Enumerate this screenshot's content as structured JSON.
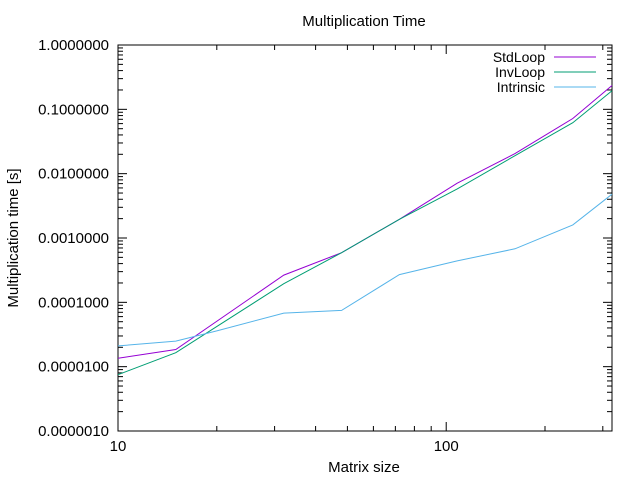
{
  "chart_data": {
    "type": "line",
    "title": "Multiplication Time",
    "xlabel": "Matrix size",
    "ylabel": "Multiplication time [s]",
    "x_scale": "log",
    "y_scale": "log",
    "xlim": [
      10,
      320
    ],
    "ylim": [
      1e-06,
      1
    ],
    "x_ticks": [
      {
        "value": 10,
        "label": "10"
      },
      {
        "value": 100,
        "label": "100"
      }
    ],
    "y_ticks": [
      {
        "value": 1e-06,
        "label": "0.0000010"
      },
      {
        "value": 1e-05,
        "label": "0.0000100"
      },
      {
        "value": 0.0001,
        "label": "0.0001000"
      },
      {
        "value": 0.001,
        "label": "0.0010000"
      },
      {
        "value": 0.01,
        "label": "0.0100000"
      },
      {
        "value": 0.1,
        "label": "0.1000000"
      },
      {
        "value": 1,
        "label": "1.0000000"
      }
    ],
    "grid": false,
    "legend_position": "top-right",
    "series": [
      {
        "name": "StdLoop",
        "color": "#9400d3",
        "x": [
          10,
          15,
          32,
          48,
          72,
          108,
          162,
          243,
          320
        ],
        "y": [
          1.35e-05,
          1.85e-05,
          0.000265,
          0.00059,
          0.00195,
          0.0071,
          0.0205,
          0.072,
          0.235
        ]
      },
      {
        "name": "InvLoop",
        "color": "#009e73",
        "x": [
          10,
          15,
          32,
          48,
          72,
          108,
          162,
          243,
          320
        ],
        "y": [
          7.5e-06,
          1.65e-05,
          0.000195,
          0.00059,
          0.00195,
          0.0058,
          0.019,
          0.062,
          0.195
        ]
      },
      {
        "name": "Intrinsic",
        "color": "#56b4e9",
        "x": [
          10,
          15,
          20,
          32,
          48,
          72,
          108,
          162,
          243,
          320
        ],
        "y": [
          2.1e-05,
          2.5e-05,
          3.6e-05,
          6.8e-05,
          7.5e-05,
          0.00027,
          0.00044,
          0.00068,
          0.0016,
          0.0048
        ]
      }
    ]
  }
}
